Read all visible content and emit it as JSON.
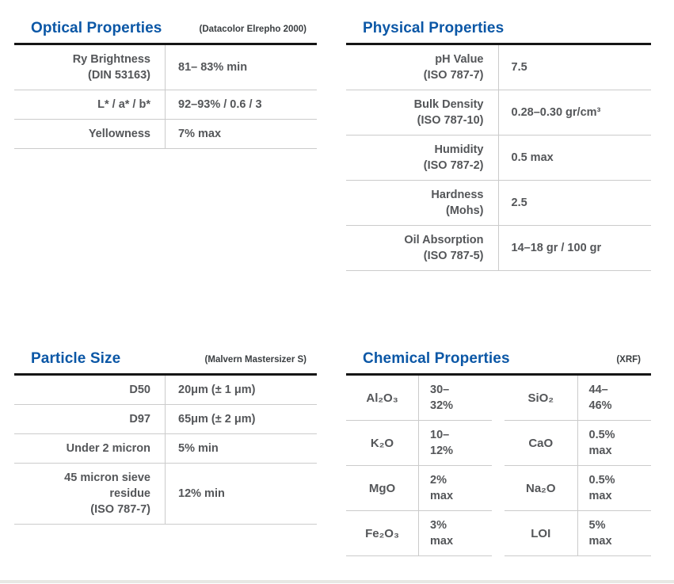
{
  "colors": {
    "title_blue": "#0b57a6",
    "subtitle_dark": "#3a3e41",
    "text_gray": "#545659",
    "heavy_rule": "#151515",
    "light_rule": "#cbcbcb",
    "footer_bar": "#e8e8e4"
  },
  "tables": {
    "optical": {
      "title": "Optical Properties",
      "subtitle": "(Datacolor Elrepho 2000)",
      "rows": [
        {
          "label": "Ry Brightness\n(DIN 53163)",
          "value": "81– 83% min"
        },
        {
          "label": "L* / a* / b*",
          "value": "92–93% / 0.6 / 3"
        },
        {
          "label": "Yellowness",
          "value": "7% max"
        }
      ]
    },
    "physical": {
      "title": "Physical Properties",
      "subtitle": "",
      "rows": [
        {
          "label": "pH Value\n(ISO 787-7)",
          "value": "7.5"
        },
        {
          "label": "Bulk Density\n(ISO 787-10)",
          "value": "0.28–0.30 gr/cm³"
        },
        {
          "label": "Humidity\n(ISO 787-2)",
          "value": "0.5 max"
        },
        {
          "label": "Hardness\n(Mohs)",
          "value": "2.5"
        },
        {
          "label": "Oil Absorption\n(ISO 787-5)",
          "value": "14–18 gr / 100 gr"
        }
      ]
    },
    "particle": {
      "title": "Particle Size",
      "subtitle": "(Malvern Mastersizer S)",
      "rows": [
        {
          "label": "D50",
          "value": "20μm (± 1 μm)"
        },
        {
          "label": "D97",
          "value": "65μm (± 2 μm)"
        },
        {
          "label": "Under 2 micron",
          "value": "5% min"
        },
        {
          "label": "45 micron sieve\nresidue\n(ISO 787-7)",
          "value": "12% min"
        }
      ]
    },
    "chemical": {
      "title": "Chemical Properties",
      "subtitle": "(XRF)",
      "left_rows": [
        {
          "label": "Al₂O₃",
          "value": "30–\n32%"
        },
        {
          "label": "K₂O",
          "value": "10–\n12%"
        },
        {
          "label": "MgO",
          "value": "2%\nmax"
        },
        {
          "label": "Fe₂O₃",
          "value": "3%\nmax"
        }
      ],
      "right_rows": [
        {
          "label": "SiO₂",
          "value": "44–\n46%"
        },
        {
          "label": "CaO",
          "value": "0.5%\nmax"
        },
        {
          "label": "Na₂O",
          "value": "0.5%\nmax"
        },
        {
          "label": "LOI",
          "value": "5%\nmax"
        }
      ]
    }
  }
}
